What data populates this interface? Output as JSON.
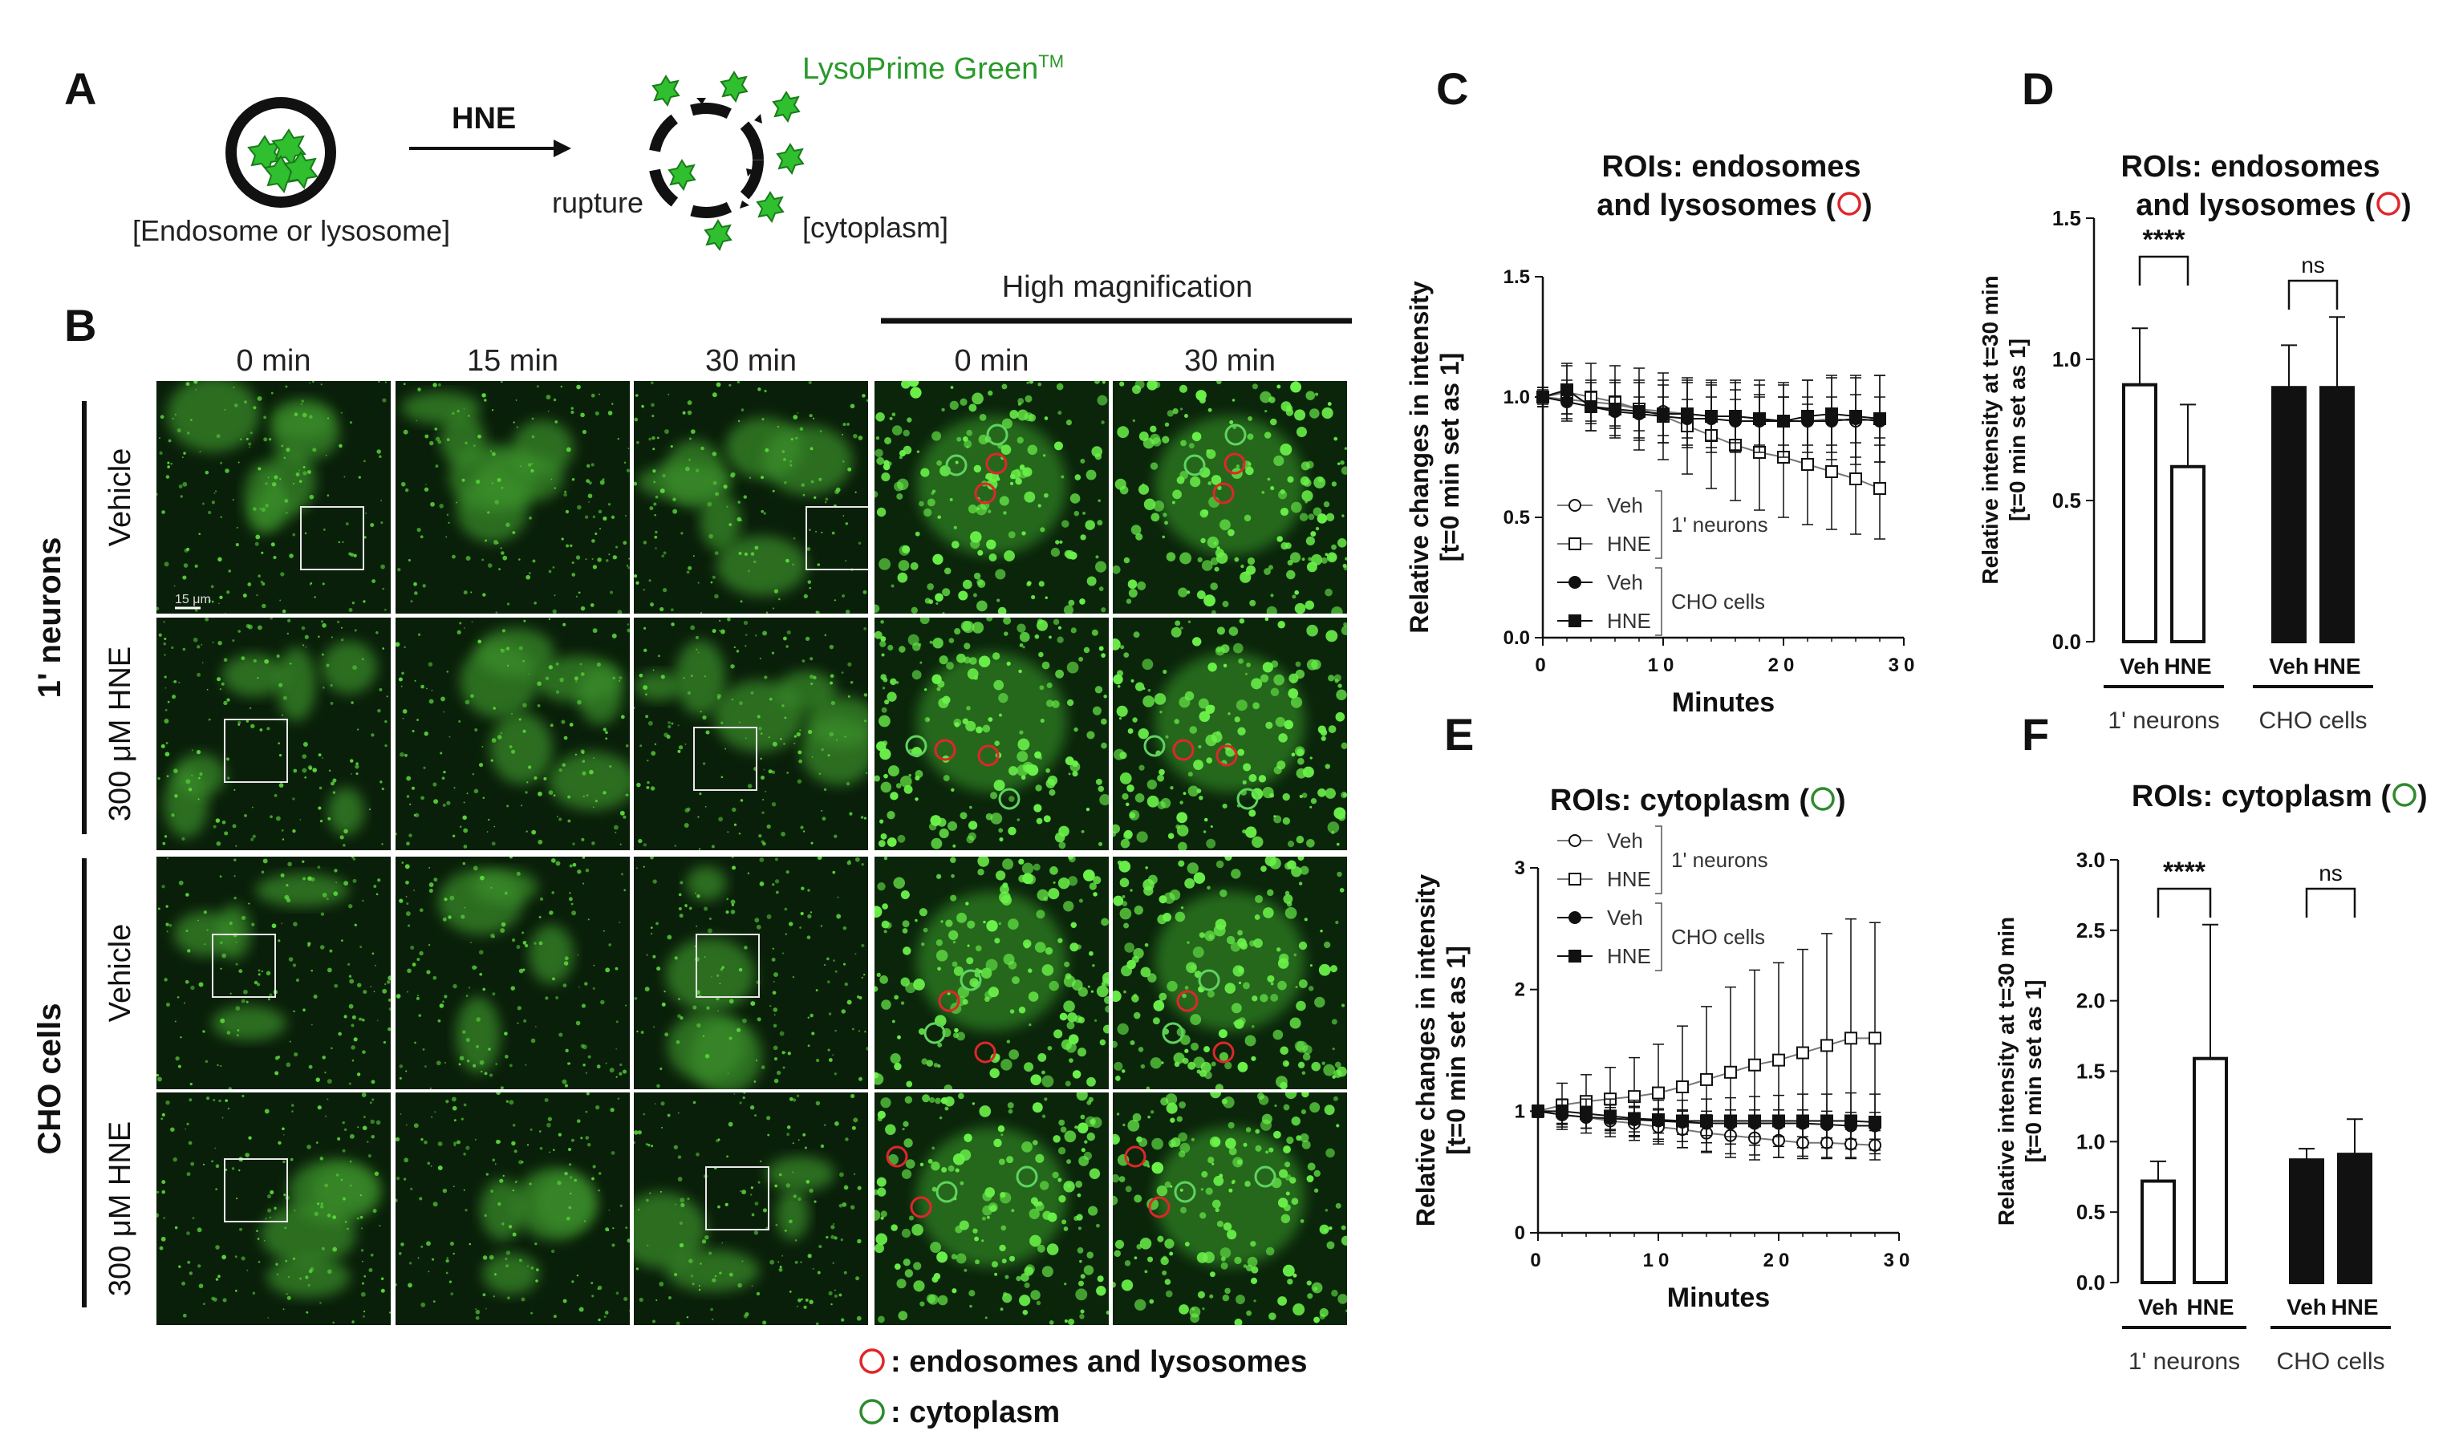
{
  "panel_letters": {
    "A": "A",
    "B": "B",
    "C": "C",
    "D": "D",
    "E": "E",
    "F": "F"
  },
  "panel_a": {
    "arrow_label": "HNE",
    "probe_label": "LysoPrime Green",
    "probe_tm": "TM",
    "left_caption": "[Endosome or lysosome]",
    "rupture_label": "rupture",
    "right_caption": "[cytoplasm]"
  },
  "panel_b": {
    "high_mag_label": "High magnification",
    "col_labels": [
      "0 min",
      "15 min",
      "30 min",
      "0 min",
      "30 min"
    ],
    "group_labels": [
      "1' neurons",
      "CHO cells"
    ],
    "row_labels": [
      "Vehicle",
      "300 μM HNE",
      "Vehicle",
      "300 μM HNE"
    ],
    "scale_bar": "15 μm",
    "legend": [
      {
        "symbol_color": "#e0262b",
        "text": ": endosomes and lysosomes"
      },
      {
        "symbol_color": "#2e8b2e",
        "text": ": cytoplasm"
      }
    ]
  },
  "chart_data": [
    {
      "id": "C",
      "type": "line",
      "title_line1": "ROIs: endosomes",
      "title_line2": "and lysosomes (",
      "title_end": ")",
      "title_marker_color": "#e0262b",
      "xlabel": "Minutes",
      "ylabel_line1": "Relative changes in intensity",
      "ylabel_line2": "[t=0 min set as 1]",
      "xlim": [
        0,
        30
      ],
      "ylim": [
        0,
        1.5
      ],
      "xticks": [
        "0",
        "10",
        "20",
        "30"
      ],
      "yticks": [
        "0.0",
        "0.5",
        "1.0",
        "1.5"
      ],
      "groups": [
        {
          "name": "1' neurons",
          "series": [
            0,
            1
          ]
        },
        {
          "name": "CHO cells",
          "series": [
            2,
            3
          ]
        }
      ],
      "x": [
        0,
        2,
        4,
        6,
        8,
        10,
        12,
        14,
        16,
        18,
        20,
        22,
        24,
        26,
        28
      ],
      "series": [
        {
          "name": "Veh",
          "marker": "circle-open",
          "values": [
            1.0,
            0.99,
            0.98,
            0.97,
            0.95,
            0.94,
            0.93,
            0.92,
            0.92,
            0.91,
            0.9,
            0.9,
            0.91,
            0.9,
            0.91
          ],
          "err": [
            0.04,
            0.08,
            0.09,
            0.1,
            0.12,
            0.13,
            0.14,
            0.15,
            0.15,
            0.16,
            0.16,
            0.17,
            0.17,
            0.18,
            0.18
          ]
        },
        {
          "name": "HNE",
          "marker": "square-open",
          "values": [
            1.0,
            1.02,
            1.0,
            0.98,
            0.95,
            0.92,
            0.88,
            0.84,
            0.8,
            0.77,
            0.75,
            0.72,
            0.69,
            0.66,
            0.62
          ],
          "err": [
            0.04,
            0.12,
            0.14,
            0.15,
            0.17,
            0.18,
            0.2,
            0.22,
            0.23,
            0.24,
            0.25,
            0.25,
            0.24,
            0.23,
            0.21
          ]
        },
        {
          "name": "Veh",
          "marker": "circle-filled",
          "values": [
            1.0,
            0.98,
            0.96,
            0.94,
            0.93,
            0.92,
            0.91,
            0.91,
            0.9,
            0.9,
            0.9,
            0.9,
            0.9,
            0.91,
            0.9
          ],
          "err": [
            0.03,
            0.05,
            0.06,
            0.06,
            0.07,
            0.08,
            0.08,
            0.09,
            0.09,
            0.1,
            0.1,
            0.1,
            0.1,
            0.1,
            0.1
          ]
        },
        {
          "name": "HNE",
          "marker": "square-filled",
          "values": [
            1.0,
            1.03,
            0.96,
            0.95,
            0.94,
            0.93,
            0.93,
            0.92,
            0.92,
            0.91,
            0.9,
            0.92,
            0.93,
            0.92,
            0.91
          ],
          "err": [
            0.04,
            0.1,
            0.1,
            0.11,
            0.12,
            0.12,
            0.13,
            0.13,
            0.14,
            0.14,
            0.15,
            0.15,
            0.16,
            0.17,
            0.18
          ]
        }
      ]
    },
    {
      "id": "D",
      "type": "bar",
      "title_line1": "ROIs: endosomes",
      "title_line2": "and lysosomes (",
      "title_end": ")",
      "title_marker_color": "#e0262b",
      "ylabel_line1": "Relative intensity at t=30 min",
      "ylabel_line2": "[t=0 min set as 1]",
      "ylim": [
        0,
        1.5
      ],
      "yticks": [
        "0.0",
        "0.5",
        "1.0",
        "1.5"
      ],
      "categories": [
        "Veh",
        "HNE",
        "Veh",
        "HNE"
      ],
      "groups": [
        "1' neurons",
        "CHO cells"
      ],
      "fills": [
        "white",
        "white",
        "black",
        "black"
      ],
      "values": [
        0.91,
        0.62,
        0.9,
        0.9
      ],
      "err": [
        0.2,
        0.22,
        0.15,
        0.25
      ],
      "significance": [
        "****",
        "ns"
      ]
    },
    {
      "id": "E",
      "type": "line",
      "title_line1": "ROIs: cytoplasm (",
      "title_end": ")",
      "title_marker_color": "#2e8b2e",
      "xlabel": "Minutes",
      "ylabel_line1": "Relative changes in intensity",
      "ylabel_line2": "[t=0 min set as 1]",
      "xlim": [
        0,
        30
      ],
      "ylim": [
        0,
        3
      ],
      "xticks": [
        "0",
        "10",
        "20",
        "30"
      ],
      "yticks": [
        "0",
        "1",
        "2",
        "3"
      ],
      "groups": [
        {
          "name": "1' neurons",
          "series": [
            0,
            1
          ]
        },
        {
          "name": "CHO cells",
          "series": [
            2,
            3
          ]
        }
      ],
      "x": [
        0,
        2,
        4,
        6,
        8,
        10,
        12,
        14,
        16,
        18,
        20,
        22,
        24,
        26,
        28
      ],
      "series": [
        {
          "name": "Veh",
          "marker": "circle-open",
          "values": [
            1.0,
            0.97,
            0.95,
            0.92,
            0.9,
            0.87,
            0.85,
            0.82,
            0.8,
            0.78,
            0.76,
            0.74,
            0.74,
            0.73,
            0.72
          ],
          "err": [
            0.05,
            0.12,
            0.13,
            0.13,
            0.14,
            0.14,
            0.15,
            0.15,
            0.15,
            0.14,
            0.14,
            0.13,
            0.13,
            0.12,
            0.12
          ]
        },
        {
          "name": "HNE",
          "marker": "square-open",
          "values": [
            1.0,
            1.05,
            1.08,
            1.1,
            1.12,
            1.15,
            1.2,
            1.26,
            1.32,
            1.38,
            1.42,
            1.48,
            1.54,
            1.6,
            1.6
          ],
          "err": [
            0.05,
            0.18,
            0.22,
            0.26,
            0.32,
            0.4,
            0.5,
            0.6,
            0.7,
            0.78,
            0.8,
            0.85,
            0.92,
            0.98,
            0.95
          ]
        },
        {
          "name": "Veh",
          "marker": "circle-filled",
          "values": [
            1.0,
            0.97,
            0.95,
            0.94,
            0.93,
            0.92,
            0.91,
            0.9,
            0.9,
            0.9,
            0.9,
            0.9,
            0.89,
            0.88,
            0.88
          ],
          "err": [
            0.05,
            0.08,
            0.09,
            0.09,
            0.1,
            0.1,
            0.1,
            0.1,
            0.11,
            0.11,
            0.11,
            0.11,
            0.11,
            0.11,
            0.11
          ]
        },
        {
          "name": "HNE",
          "marker": "square-filled",
          "values": [
            1.0,
            1.0,
            0.98,
            0.96,
            0.94,
            0.93,
            0.92,
            0.92,
            0.92,
            0.92,
            0.92,
            0.92,
            0.92,
            0.92,
            0.91
          ],
          "err": [
            0.05,
            0.1,
            0.12,
            0.14,
            0.15,
            0.16,
            0.17,
            0.18,
            0.19,
            0.2,
            0.21,
            0.22,
            0.22,
            0.23,
            0.23
          ]
        }
      ]
    },
    {
      "id": "F",
      "type": "bar",
      "title_line1": "ROIs: cytoplasm (",
      "title_end": ")",
      "title_marker_color": "#2e8b2e",
      "ylabel_line1": "Relative intensity at t=30 min",
      "ylabel_line2": "[t=0 min set as 1]",
      "ylim": [
        0,
        3
      ],
      "yticks": [
        "0.0",
        "0.5",
        "1.0",
        "1.5",
        "2.0",
        "2.5",
        "3.0"
      ],
      "categories": [
        "Veh",
        "HNE",
        "Veh",
        "HNE"
      ],
      "groups": [
        "1' neurons",
        "CHO cells"
      ],
      "fills": [
        "white",
        "white",
        "black",
        "black"
      ],
      "values": [
        0.72,
        1.59,
        0.87,
        0.91
      ],
      "err": [
        0.14,
        0.95,
        0.08,
        0.25
      ],
      "significance": [
        "****",
        "ns"
      ]
    }
  ]
}
